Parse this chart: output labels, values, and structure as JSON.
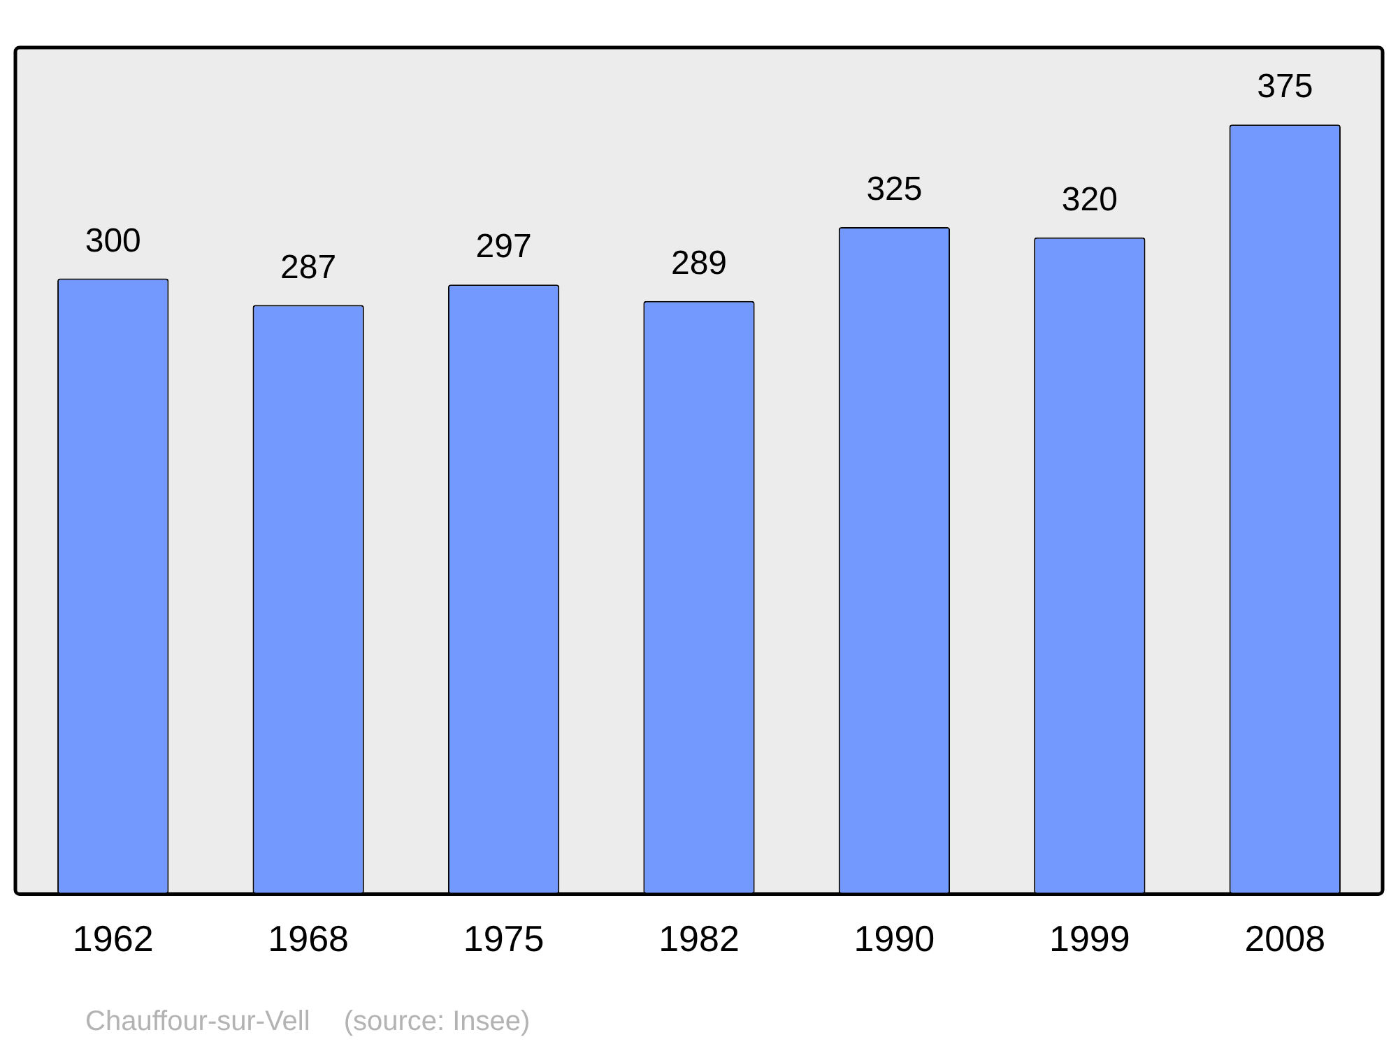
{
  "chart_data": {
    "type": "bar",
    "categories": [
      "1962",
      "1968",
      "1975",
      "1982",
      "1990",
      "1999",
      "2008"
    ],
    "values": [
      300,
      287,
      297,
      289,
      325,
      320,
      375
    ],
    "color": "#7399ff",
    "data_labels": true,
    "grid": false,
    "legend": false,
    "annotations": [
      "Chauffour-sur-Vell",
      "(source: Insee)"
    ]
  }
}
